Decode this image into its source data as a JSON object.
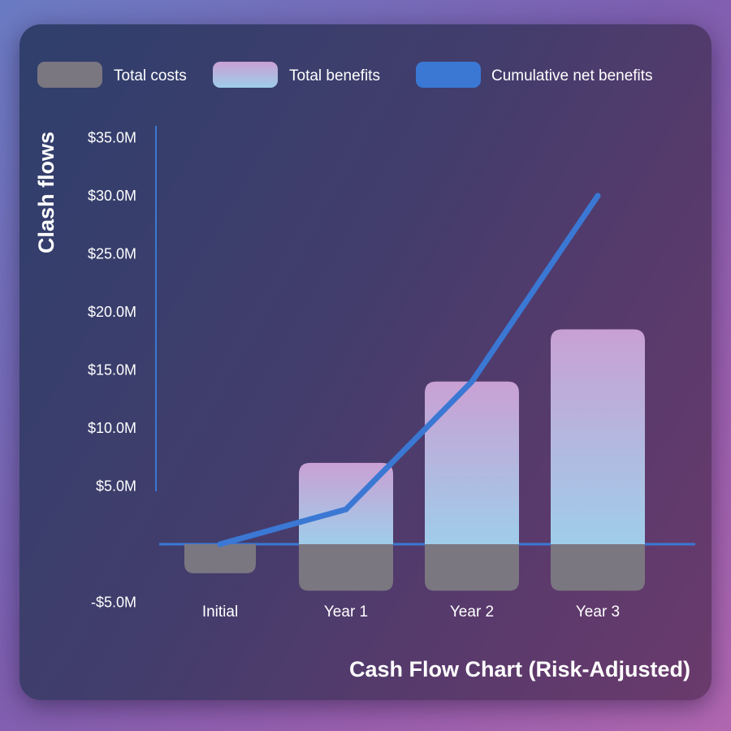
{
  "chart_data": {
    "type": "bar",
    "title": "Cash Flow Chart (Risk-Adjusted)",
    "xlabel": "",
    "ylabel": "Clash flows",
    "categories": [
      "Initial",
      "Year 1",
      "Year 2",
      "Year 3"
    ],
    "ylim": [
      -5,
      35
    ],
    "yticks": [
      -5,
      5,
      10,
      15,
      20,
      25,
      30,
      35
    ],
    "ytick_labels": [
      "-$5.0M",
      "$5.0M",
      "$10.0M",
      "$15.0M",
      "$20.0M",
      "$25.0M",
      "$30.0M",
      "$35.0M"
    ],
    "series": [
      {
        "name": "Total costs",
        "type": "bar",
        "values": [
          -2.5,
          -4.0,
          -4.0,
          -4.0
        ],
        "color": "#7b7780"
      },
      {
        "name": "Total benefits",
        "type": "bar",
        "values": [
          0,
          7.0,
          14.0,
          18.5
        ],
        "color_top": "#c9a0d4",
        "color_bottom": "#9fcdea"
      },
      {
        "name": "Cumulative net benefits",
        "type": "line",
        "values": [
          0,
          3.0,
          14.0,
          30.0
        ],
        "color": "#3a78d4"
      }
    ],
    "legend_position": "top",
    "grid": false
  }
}
